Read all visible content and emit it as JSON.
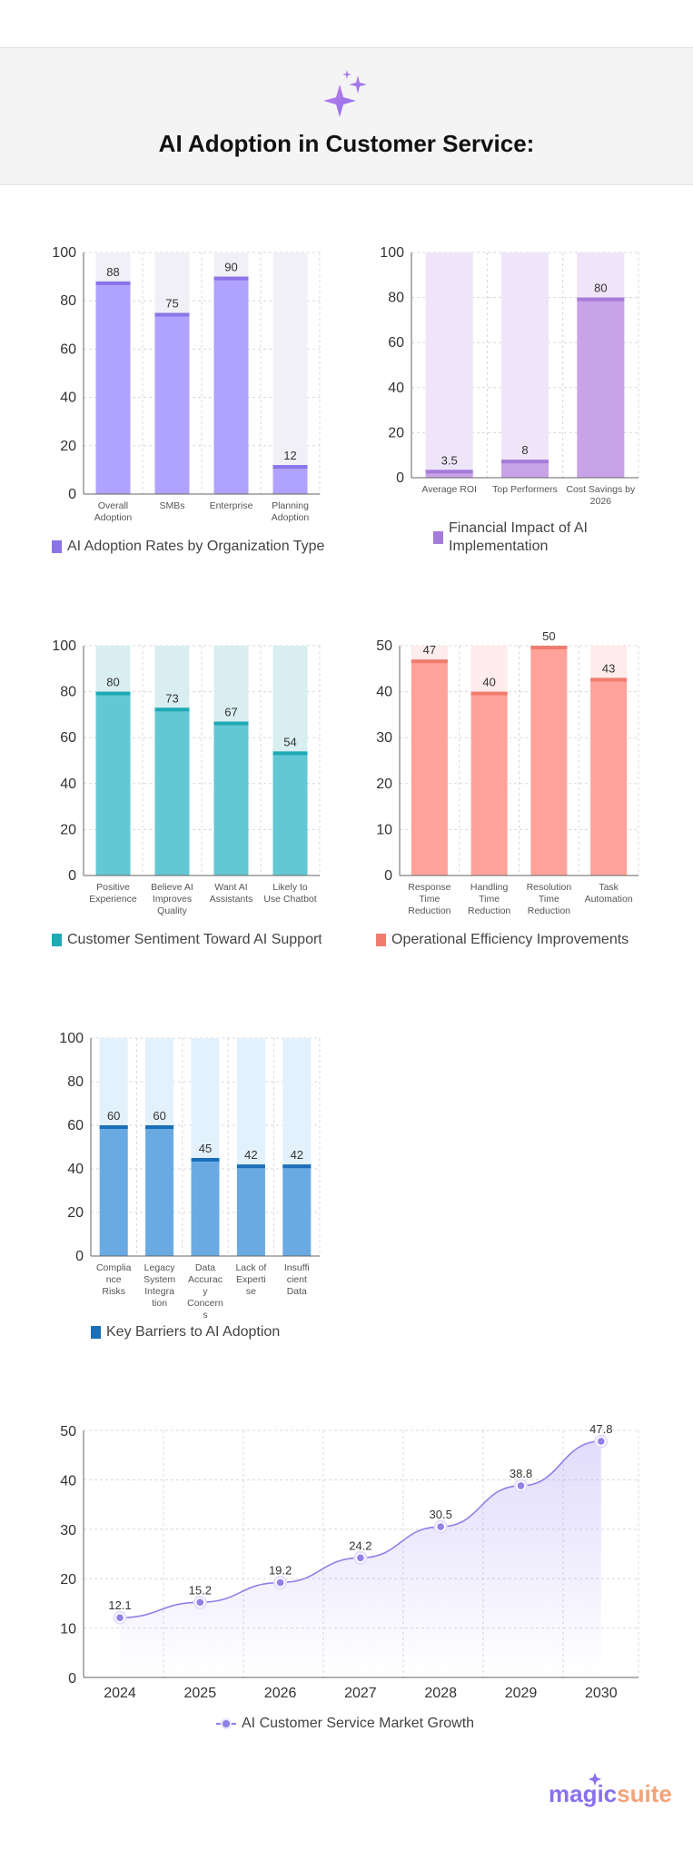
{
  "page": {
    "title": "AI Adoption in Customer Service:",
    "icon": "sparkle-icon"
  },
  "colors": {
    "purple": "#b0a2ff",
    "purple_cap": "#8b73e8",
    "purple_bg": "#f0f0f6",
    "violet": "#c9a3e8",
    "violet_cap": "#a57bd9",
    "violet_bg": "#efe5f8",
    "teal": "#62c8d3",
    "teal_cap": "#1fa9b5",
    "teal_bg": "#d9eef0",
    "salmon": "#ffa29a",
    "salmon_cap": "#f07c6f",
    "salmon_bg": "#ffeceb",
    "blue": "#6aaae3",
    "blue_cap": "#1a6fb8",
    "blue_bg": "#e3f1fc",
    "line": "#8f82e8"
  },
  "chart_data": [
    {
      "type": "bar",
      "title": "AI Adoption Rates by Organization Type",
      "legend": "AI Adoption Rates by Organization Type",
      "categories": [
        "Overall Adoption",
        "SMBs",
        "Enterprise",
        "Planning Adoption"
      ],
      "values": [
        88,
        75,
        90,
        12
      ],
      "ylim": [
        0,
        100
      ],
      "yticks": [
        0,
        20,
        40,
        60,
        80,
        100
      ],
      "grid": true
    },
    {
      "type": "bar",
      "title": "Financial Impact of AI Implementation",
      "legend": "Financial Impact of AI Implementation",
      "categories": [
        "Average ROI",
        "Top Performers",
        "Cost Savings by 2026"
      ],
      "values": [
        3.5,
        8,
        80
      ],
      "ylim": [
        0,
        100
      ],
      "yticks": [
        0,
        20,
        40,
        60,
        80,
        100
      ],
      "grid": true
    },
    {
      "type": "bar",
      "title": "Customer Sentiment Toward AI Support",
      "legend": "Customer Sentiment Toward AI Support",
      "categories": [
        "Positive Experience",
        "Believe AI Improves Quality",
        "Want AI Assistants",
        "Likely to Use Chatbot"
      ],
      "values": [
        80,
        73,
        67,
        54
      ],
      "ylim": [
        0,
        100
      ],
      "yticks": [
        0,
        20,
        40,
        60,
        80,
        100
      ],
      "grid": true
    },
    {
      "type": "bar",
      "title": "Operational Efficiency Improvements",
      "legend": "Operational Efficiency Improvements",
      "categories": [
        "Response Time Reduction",
        "Handling Time Reduction",
        "Resolution Time Reduction",
        "Task Automation"
      ],
      "values": [
        47,
        40,
        50,
        43
      ],
      "ylim": [
        0,
        50
      ],
      "yticks": [
        0,
        10,
        20,
        30,
        40,
        50
      ],
      "grid": true
    },
    {
      "type": "bar",
      "title": "Key Barriers to AI Adoption",
      "legend": "Key Barriers to AI Adoption",
      "categories": [
        "Compliance Risks",
        "Legacy System Integration",
        "Data Accuracy Concerns",
        "Lack of Expertise",
        "Insufficient Data"
      ],
      "values": [
        60,
        60,
        45,
        42,
        42
      ],
      "ylim": [
        0,
        100
      ],
      "yticks": [
        0,
        20,
        40,
        60,
        80,
        100
      ],
      "grid": true
    },
    {
      "type": "line",
      "title": "AI Customer Service Market Growth",
      "legend": "AI Customer Service Market Growth",
      "x": [
        "2024",
        "2025",
        "2026",
        "2027",
        "2028",
        "2029",
        "2030"
      ],
      "values": [
        12.1,
        15.2,
        19.2,
        24.2,
        30.5,
        38.8,
        47.8
      ],
      "ylim": [
        0,
        50
      ],
      "yticks": [
        0,
        10,
        20,
        30,
        40,
        50
      ],
      "grid": true
    }
  ],
  "brand": {
    "name_part1": "magic",
    "name_part2": "suite"
  }
}
